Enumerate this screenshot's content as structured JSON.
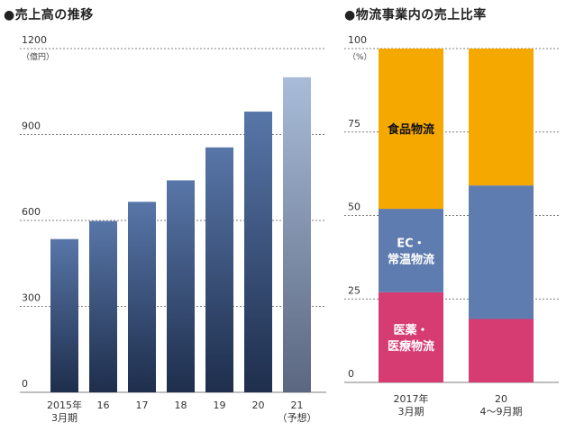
{
  "chart_data": [
    {
      "type": "bar",
      "title": "●売上高の推移",
      "unit": "（億円）",
      "ylim": [
        0,
        1200
      ],
      "yticks": [
        0,
        300,
        600,
        900,
        1200
      ],
      "categories": [
        [
          "2015年",
          "3月期"
        ],
        [
          "16"
        ],
        [
          "17"
        ],
        [
          "18"
        ],
        [
          "19"
        ],
        [
          "20"
        ],
        [
          "21",
          "（予想）"
        ]
      ],
      "values": [
        535,
        598,
        665,
        740,
        855,
        980,
        1100
      ],
      "colors": {
        "actual_top": "#5876a8",
        "actual_bottom": "#1e2e4c",
        "forecast_top": "#a8bcd9",
        "forecast_bottom": "#5b6780"
      },
      "grid": "dotted-horizontal"
    },
    {
      "type": "bar",
      "stacked": true,
      "title": "●物流事業内の売上比率",
      "unit": "（%）",
      "ylim": [
        0,
        100
      ],
      "yticks": [
        0,
        25,
        50,
        75,
        100
      ],
      "categories": [
        [
          "2017年",
          "3月期"
        ],
        [
          "20",
          "4～9月期"
        ]
      ],
      "series": [
        {
          "name": [
            "医薬・",
            "医療物流"
          ],
          "values": [
            27,
            19
          ],
          "color": "#d63b72",
          "labelColor": "#ffffff"
        },
        {
          "name": [
            "EC・",
            "常温物流"
          ],
          "values": [
            25,
            40
          ],
          "color": "#5e7cb0",
          "labelColor": "#ffffff"
        },
        {
          "name": [
            "食品物流"
          ],
          "values": [
            48,
            41
          ],
          "color": "#f5a800",
          "labelColor": "#111111"
        }
      ],
      "grid": "dotted-horizontal"
    }
  ]
}
